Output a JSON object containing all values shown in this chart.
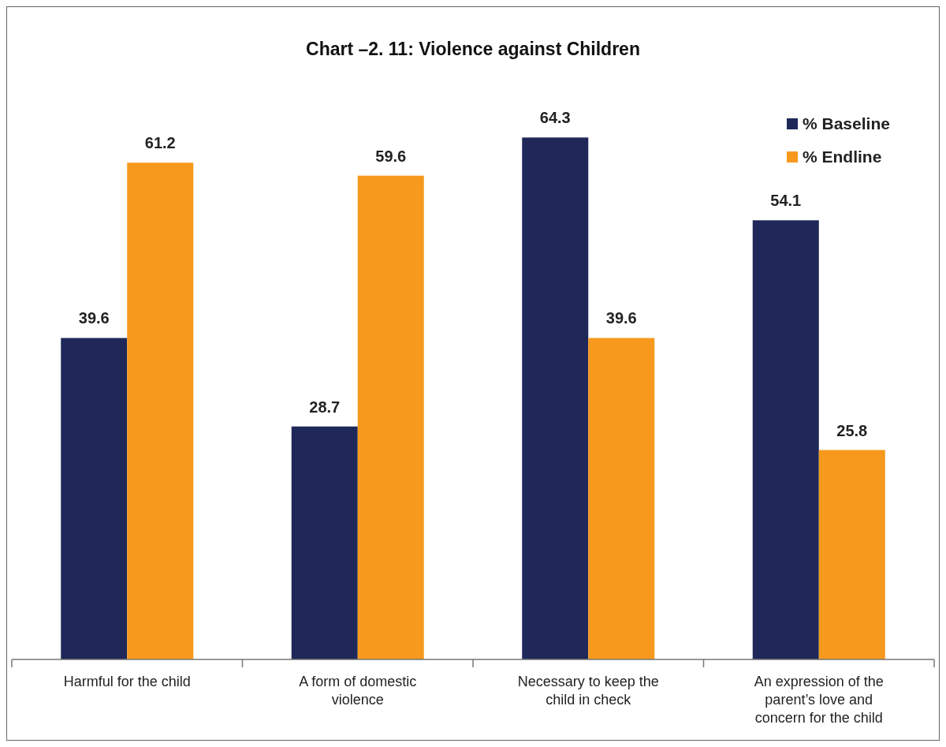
{
  "chart_data": {
    "type": "bar",
    "title": "Chart –2. 11: Violence against Children",
    "categories": [
      "Harmful for the child",
      "A form of domestic violence",
      "Necessary to keep the child in check",
      "An expression of the parent’s love and concern for the child"
    ],
    "series": [
      {
        "name": "% Baseline",
        "color": "#1f2858",
        "values": [
          39.6,
          28.7,
          64.3,
          54.1
        ]
      },
      {
        "name": "% Endline",
        "color": "#f7991c",
        "values": [
          61.2,
          59.6,
          39.6,
          25.8
        ]
      }
    ],
    "data_labels": true,
    "legend": "top right"
  }
}
